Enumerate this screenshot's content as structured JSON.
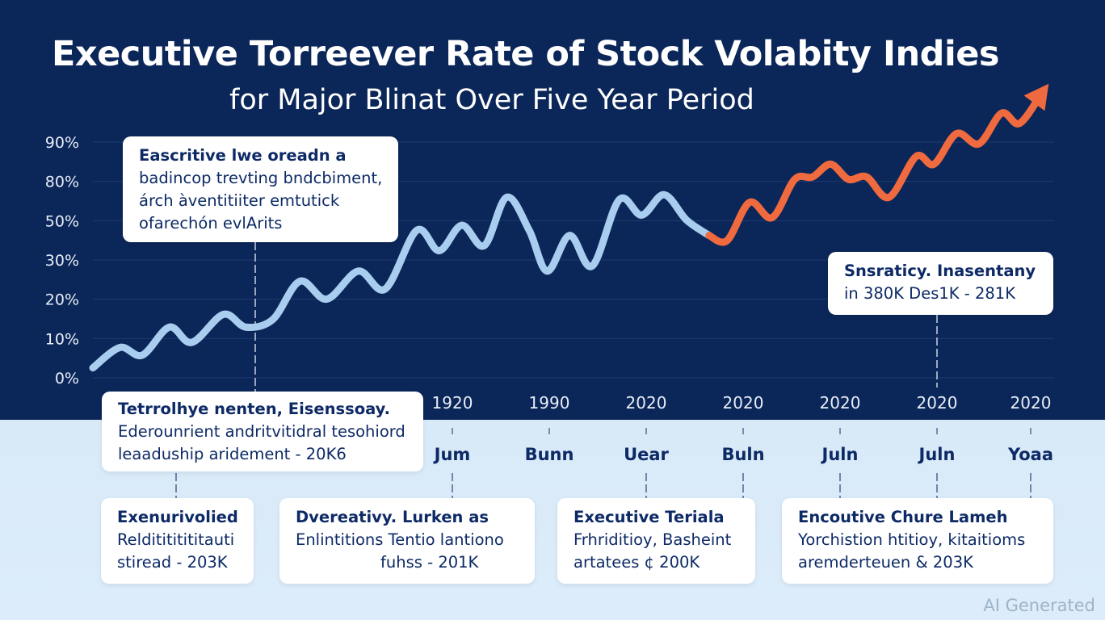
{
  "header": {
    "title": "Executive Torreever Rate of Stock Volabity Indies",
    "subtitle": "for Major Blinat Over Five Year Period"
  },
  "colors": {
    "background_top": "#0b2658",
    "background_bottom": "#d8e9f8",
    "series_historical": "#a9cdee",
    "series_recent": "#ef6a3f",
    "callout_text": "#0d2a66"
  },
  "chart_data": {
    "type": "line",
    "title": "Executive Torreever Rate of Stock Volabity Indies",
    "subtitle": "for Major Blinat Over Five Year Period",
    "xlabel": "",
    "ylabel": "",
    "y_tick_labels": [
      "0%",
      "10%",
      "20%",
      "30%",
      "50%",
      "80%",
      "90%"
    ],
    "x_year_labels": [
      "1920",
      "1990",
      "2020",
      "2020",
      "2020",
      "2020",
      "2020"
    ],
    "x_month_labels": [
      "Jum",
      "Bunn",
      "Uear",
      "Buln",
      "Juln",
      "Juln",
      "Yoaa"
    ],
    "grid": true,
    "legend": "none",
    "series": [
      {
        "name": "historical",
        "color": "#a9cdee",
        "points": [
          [
            0,
            0.2
          ],
          [
            0.3,
            1.0
          ],
          [
            0.55,
            0.7
          ],
          [
            0.85,
            1.8
          ],
          [
            1.1,
            1.2
          ],
          [
            1.45,
            2.3
          ],
          [
            1.7,
            1.8
          ],
          [
            2.0,
            2.1
          ],
          [
            2.3,
            3.6
          ],
          [
            2.6,
            2.9
          ],
          [
            2.95,
            4.0
          ],
          [
            3.25,
            3.3
          ],
          [
            3.6,
            5.6
          ],
          [
            3.85,
            4.8
          ],
          [
            4.1,
            5.8
          ],
          [
            4.35,
            5.0
          ],
          [
            4.6,
            6.9
          ],
          [
            4.85,
            5.6
          ],
          [
            5.05,
            4.0
          ],
          [
            5.3,
            5.4
          ],
          [
            5.55,
            4.2
          ],
          [
            5.85,
            6.8
          ],
          [
            6.1,
            6.2
          ],
          [
            6.35,
            7.0
          ],
          [
            6.6,
            6.0
          ],
          [
            6.85,
            5.4
          ]
        ]
      },
      {
        "name": "recent",
        "color": "#ef6a3f",
        "points": [
          [
            6.85,
            5.4
          ],
          [
            7.05,
            5.2
          ],
          [
            7.3,
            6.7
          ],
          [
            7.55,
            6.1
          ],
          [
            7.8,
            7.6
          ],
          [
            8.0,
            7.7
          ],
          [
            8.2,
            8.2
          ],
          [
            8.4,
            7.6
          ],
          [
            8.6,
            7.7
          ],
          [
            8.85,
            6.9
          ],
          [
            9.15,
            8.5
          ],
          [
            9.35,
            8.2
          ],
          [
            9.6,
            9.4
          ],
          [
            9.85,
            9.0
          ],
          [
            10.1,
            10.2
          ],
          [
            10.3,
            9.8
          ],
          [
            10.55,
            11.0
          ]
        ]
      }
    ],
    "annotations": [
      {
        "lines": [
          "Eascritive lwe oreadn a",
          "badincop trevting bndcbiment,",
          "árch àventitiiter emtutick",
          "ofarechón evlArits"
        ]
      },
      {
        "lines": [
          "Snsraticy. Inasentany",
          "in 380K Des1K - 281K"
        ]
      },
      {
        "lines": [
          "Tetrrolhye nenten, Eisenssoay.",
          "Ederounrient andritvitidral tesohiord",
          "leaaduship aridement - 20K6"
        ]
      },
      {
        "lines": [
          "Exenurivolied",
          "Relditititititauti",
          "stiread - 203K"
        ]
      },
      {
        "lines": [
          "Dvereativy. Lurken as",
          "Enlintitions Tentio lantiono",
          "fuhss - 201K"
        ]
      },
      {
        "lines": [
          "Executive Teriala",
          "Frhriditioy, Basheint",
          "artatees ¢ 200K"
        ]
      },
      {
        "lines": [
          "Encoutive Chure Lameh",
          "Yorchistion htitioy, kitaitioms",
          "aremderteuen & 203K"
        ]
      }
    ]
  },
  "watermark": "AI Generated"
}
